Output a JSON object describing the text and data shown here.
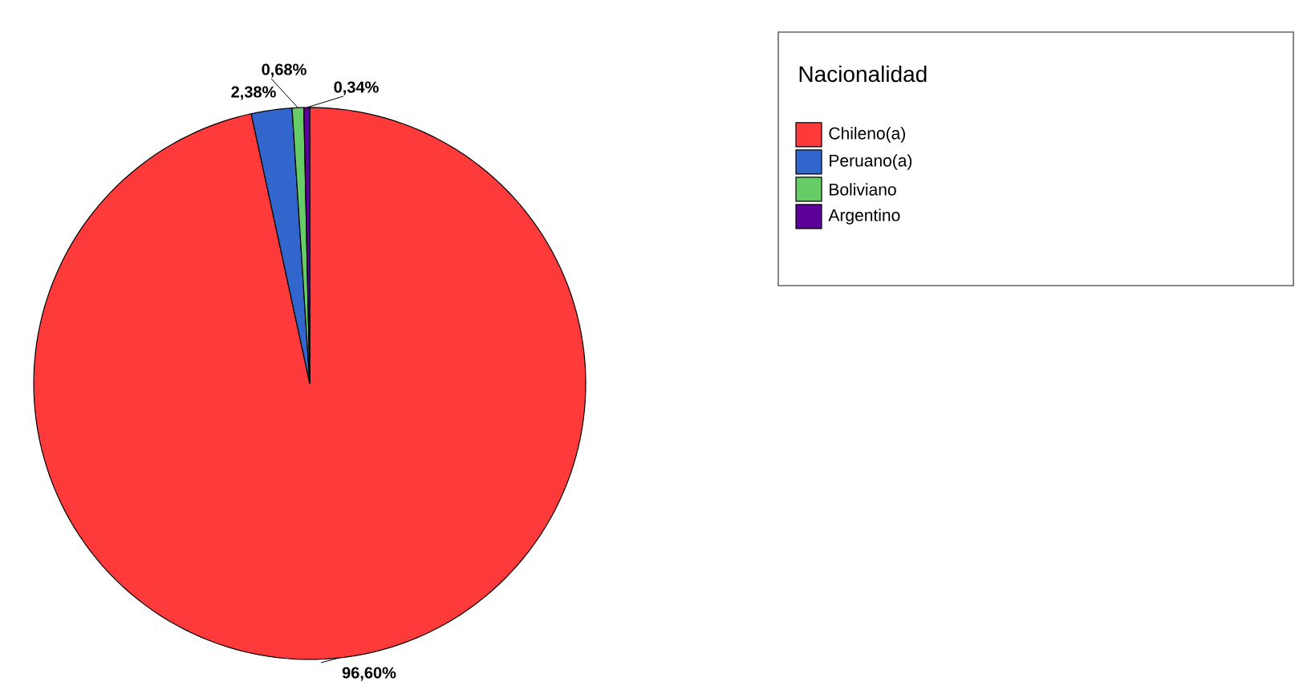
{
  "chart_data": {
    "type": "pie",
    "legend_title": "Nacionalidad",
    "legend": "top right",
    "categories": [
      "Chileno(a)",
      "Peruano(a)",
      "Boliviano",
      "Argentino"
    ],
    "values": [
      96.6,
      2.38,
      0.68,
      0.34
    ],
    "value_labels": [
      "96,60%",
      "2,38%",
      "0,68%",
      "0,34%"
    ],
    "colors": [
      "#ff3a3a",
      "#3366cc",
      "#66cc66",
      "#5c0099"
    ]
  }
}
